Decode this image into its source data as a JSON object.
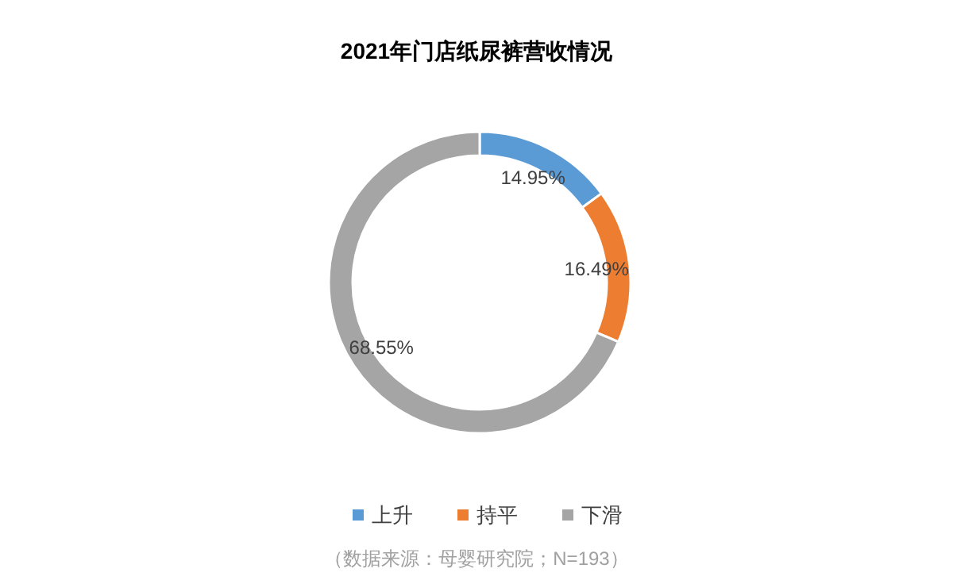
{
  "chart_data": {
    "type": "donut",
    "title": "2021年门店纸尿裤营收情况",
    "categories": [
      "上升",
      "持平",
      "下滑"
    ],
    "values": [
      14.95,
      16.49,
      68.55
    ],
    "colors": [
      "#5b9bd5",
      "#ed7d31",
      "#a5a5a5"
    ],
    "value_labels": [
      "14.95%",
      "16.49%",
      "68.55%"
    ],
    "legend": "bottom",
    "annotations": [
      "（数据来源：母婴研究院；N=193）"
    ]
  }
}
